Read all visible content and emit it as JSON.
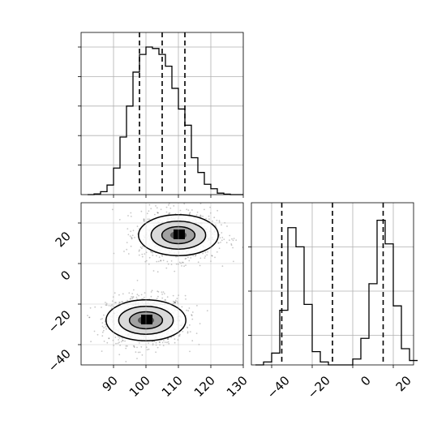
{
  "chart_data": [
    {
      "panel": "x-marginal",
      "type": "histogram",
      "x": [
        82,
        84,
        86,
        88,
        90,
        92,
        94,
        96,
        98,
        100,
        102,
        104,
        106,
        108,
        110,
        112,
        114,
        116,
        118,
        120,
        122,
        124,
        126,
        128
      ],
      "values": [
        0.0,
        0.005,
        0.02,
        0.065,
        0.18,
        0.39,
        0.6,
        0.83,
        0.95,
        1.0,
        0.99,
        0.95,
        0.87,
        0.72,
        0.58,
        0.47,
        0.25,
        0.15,
        0.07,
        0.04,
        0.01,
        0.003,
        0.0,
        0.0
      ],
      "quantiles": [
        98,
        105,
        112
      ],
      "xlim": [
        80,
        130
      ],
      "xticks": [
        90,
        100,
        110,
        120,
        130
      ],
      "grid": true,
      "title": "",
      "xlabel": "",
      "ylabel": ""
    },
    {
      "panel": "y-marginal",
      "type": "histogram",
      "x": [
        -48,
        -44,
        -40,
        -36,
        -32,
        -28,
        -24,
        -20,
        -16,
        -12,
        -8,
        -4,
        0,
        4,
        8,
        12,
        16,
        20,
        24,
        28
      ],
      "values": [
        0.0,
        0.02,
        0.08,
        0.37,
        0.93,
        0.8,
        0.41,
        0.09,
        0.02,
        0.0,
        0.0,
        0.0,
        0.04,
        0.18,
        0.55,
        0.98,
        0.82,
        0.4,
        0.11,
        0.03
      ],
      "quantiles": [
        -35,
        -10,
        15
      ],
      "xlim": [
        -50,
        30
      ],
      "xticks": [
        -40,
        -20,
        0,
        20
      ],
      "xtick_labels": [
        "−40",
        "−20",
        "0",
        "20"
      ],
      "grid": true,
      "title": "",
      "xlabel": "",
      "ylabel": ""
    },
    {
      "panel": "joint",
      "type": "scatter",
      "xlim": [
        80,
        130
      ],
      "ylim": [
        -50,
        30
      ],
      "xticks": [
        90,
        100,
        110,
        120,
        130
      ],
      "xtick_labels": [
        "90",
        "100",
        "110",
        "120",
        "130"
      ],
      "yticks": [
        -40,
        -20,
        0,
        20
      ],
      "ytick_labels": [
        "−40",
        "−20",
        "0",
        "20"
      ],
      "clusters": [
        {
          "center": [
            100,
            -28
          ],
          "spread": [
            6,
            6
          ]
        },
        {
          "center": [
            110,
            14
          ],
          "spread": [
            6,
            6
          ]
        }
      ],
      "contour_levels": [
        "1σ",
        "2σ",
        "3σ"
      ],
      "grid": true,
      "title": "",
      "xlabel": "",
      "ylabel": ""
    }
  ]
}
